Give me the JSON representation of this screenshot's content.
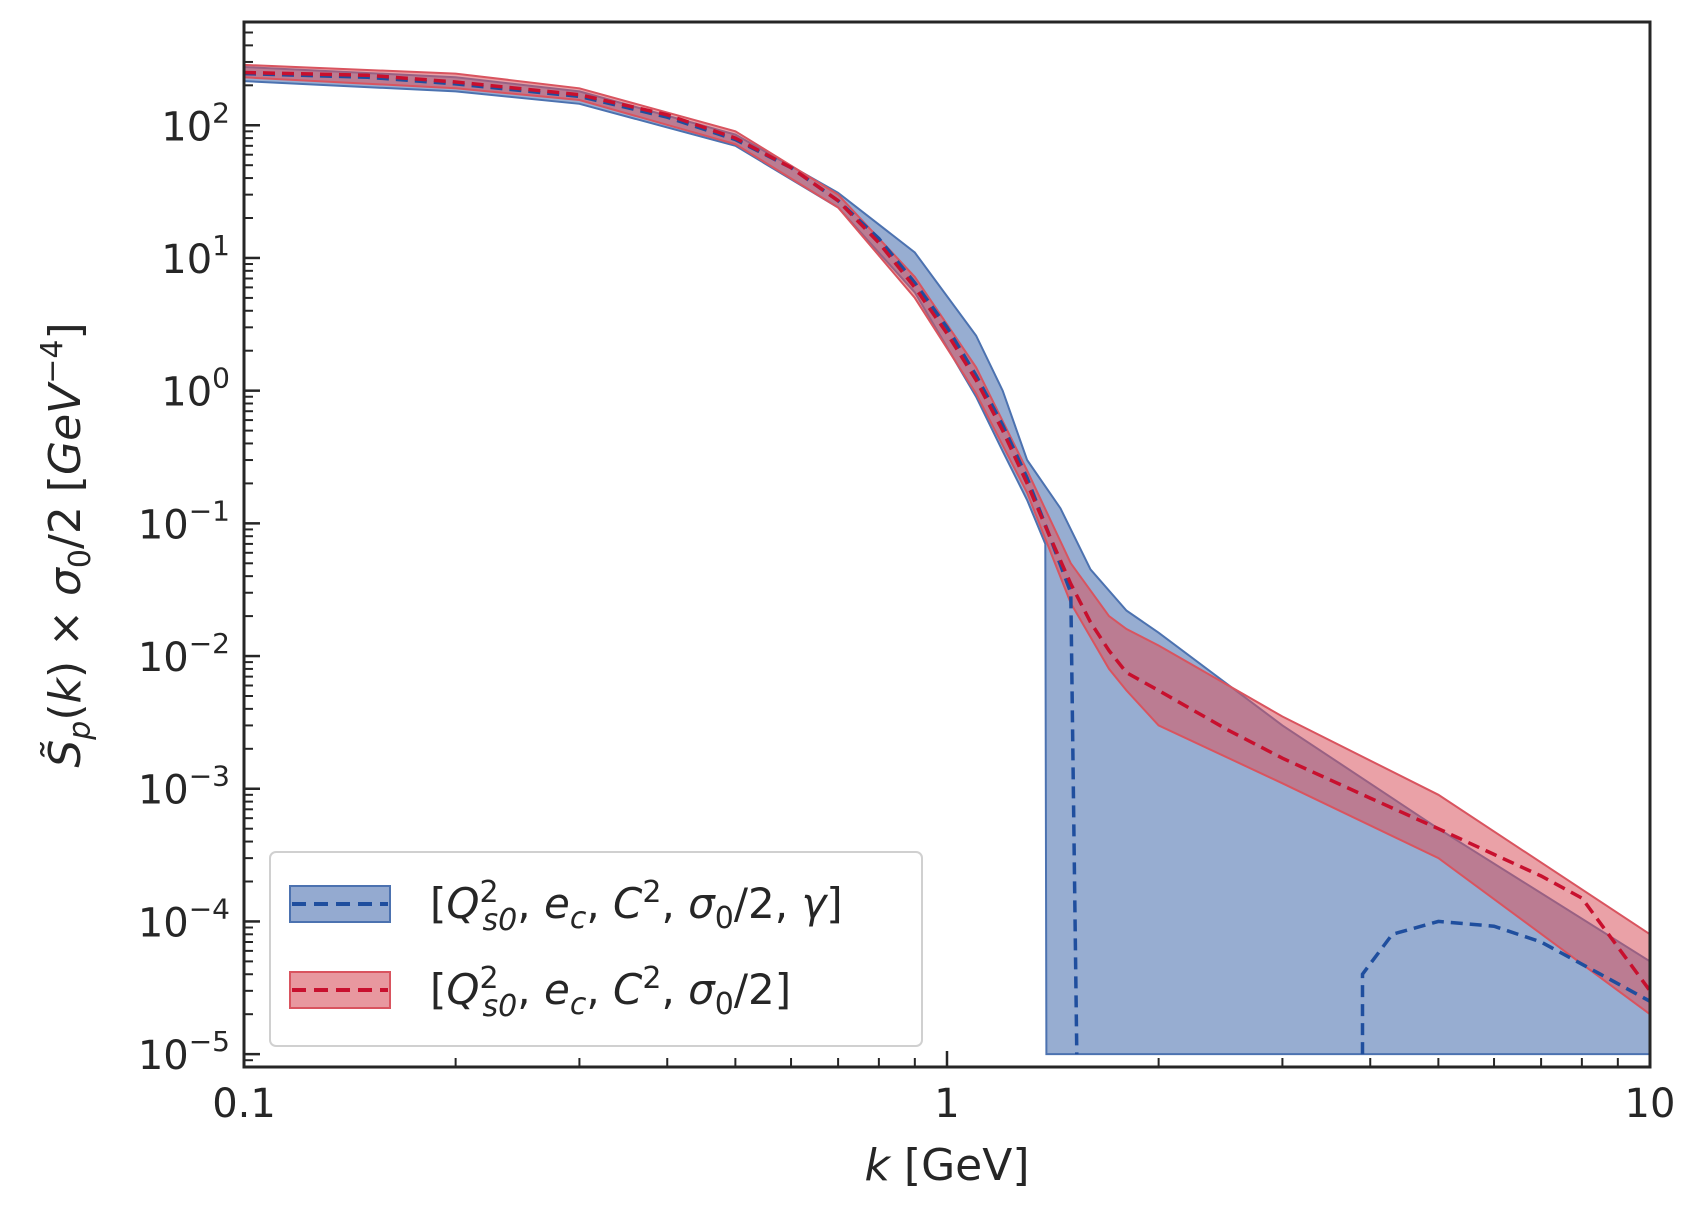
{
  "chart_data": {
    "type": "line",
    "x_scale": "log",
    "y_scale": "log",
    "xlim": [
      0.1,
      10
    ],
    "ylim": [
      8e-06,
      600
    ],
    "grid": false,
    "legend_position": "lower-left",
    "xlabel": "k [GeV]",
    "ylabel": "S̃p(k) × σ0/2 [GeV−4]",
    "x_tick_labels": [
      {
        "value": 0.1,
        "label": "0.1"
      },
      {
        "value": 1,
        "label": "1"
      },
      {
        "value": 10,
        "label": "10"
      }
    ],
    "y_tick_labels": [
      {
        "value": 100,
        "base": "10",
        "exp": "2"
      },
      {
        "value": 10,
        "base": "10",
        "exp": "1"
      },
      {
        "value": 1,
        "base": "10",
        "exp": "0"
      },
      {
        "value": 0.1,
        "base": "10",
        "exp": "−1"
      },
      {
        "value": 0.01,
        "base": "10",
        "exp": "−2"
      },
      {
        "value": 0.001,
        "base": "10",
        "exp": "−3"
      },
      {
        "value": 0.0001,
        "base": "10",
        "exp": "−4"
      },
      {
        "value": 1e-05,
        "base": "10",
        "exp": "−5"
      }
    ],
    "series": [
      {
        "name": "[Q²s0, ec, C², σ0/2, γ]",
        "color": "#1f4e9e",
        "band_color": "#4c72b0",
        "line": [
          {
            "x": 0.1,
            "y": 245
          },
          {
            "x": 0.15,
            "y": 230
          },
          {
            "x": 0.2,
            "y": 205
          },
          {
            "x": 0.3,
            "y": 165
          },
          {
            "x": 0.4,
            "y": 115
          },
          {
            "x": 0.5,
            "y": 78
          },
          {
            "x": 0.6,
            "y": 48
          },
          {
            "x": 0.7,
            "y": 27
          },
          {
            "x": 0.8,
            "y": 14
          },
          {
            "x": 0.9,
            "y": 6.5
          },
          {
            "x": 1.0,
            "y": 3.0
          },
          {
            "x": 1.1,
            "y": 1.3
          },
          {
            "x": 1.2,
            "y": 0.55
          },
          {
            "x": 1.3,
            "y": 0.22
          },
          {
            "x": 1.4,
            "y": 0.08
          },
          {
            "x": 1.5,
            "y": 0.03
          },
          {
            "x": 1.53,
            "y": 1e-05
          }
        ],
        "line_segment_2": [
          {
            "x": 3.9,
            "y": 1e-05
          },
          {
            "x": 3.9,
            "y": 4e-05
          },
          {
            "x": 4.3,
            "y": 8e-05
          },
          {
            "x": 5.0,
            "y": 0.0001
          },
          {
            "x": 6.0,
            "y": 9.2e-05
          },
          {
            "x": 7.0,
            "y": 7e-05
          },
          {
            "x": 8.5,
            "y": 4e-05
          },
          {
            "x": 10,
            "y": 2.5e-05
          }
        ],
        "band_upper": [
          {
            "x": 0.1,
            "y": 275
          },
          {
            "x": 0.2,
            "y": 230
          },
          {
            "x": 0.3,
            "y": 180
          },
          {
            "x": 0.5,
            "y": 85
          },
          {
            "x": 0.7,
            "y": 31
          },
          {
            "x": 0.9,
            "y": 11
          },
          {
            "x": 1.1,
            "y": 2.6
          },
          {
            "x": 1.2,
            "y": 1.0
          },
          {
            "x": 1.3,
            "y": 0.3
          },
          {
            "x": 1.45,
            "y": 0.13
          },
          {
            "x": 1.6,
            "y": 0.045
          },
          {
            "x": 1.8,
            "y": 0.022
          },
          {
            "x": 2.0,
            "y": 0.015
          },
          {
            "x": 3.0,
            "y": 0.003
          },
          {
            "x": 5.0,
            "y": 0.0005
          },
          {
            "x": 10,
            "y": 5e-05
          }
        ],
        "band_lower": [
          {
            "x": 0.1,
            "y": 215
          },
          {
            "x": 0.2,
            "y": 180
          },
          {
            "x": 0.3,
            "y": 145
          },
          {
            "x": 0.5,
            "y": 70
          },
          {
            "x": 0.7,
            "y": 24
          },
          {
            "x": 0.9,
            "y": 5.5
          },
          {
            "x": 1.1,
            "y": 0.9
          },
          {
            "x": 1.2,
            "y": 0.35
          },
          {
            "x": 1.3,
            "y": 0.15
          },
          {
            "x": 1.38,
            "y": 0.07
          },
          {
            "x": 1.385,
            "y": 1e-05
          },
          {
            "x": 10,
            "y": 1e-05
          }
        ]
      },
      {
        "name": "[Q²s0, ec, C², σ0/2]",
        "color": "#c8102e",
        "band_color": "#d9545f",
        "line": [
          {
            "x": 0.1,
            "y": 250
          },
          {
            "x": 0.15,
            "y": 238
          },
          {
            "x": 0.2,
            "y": 212
          },
          {
            "x": 0.3,
            "y": 170
          },
          {
            "x": 0.4,
            "y": 120
          },
          {
            "x": 0.5,
            "y": 80
          },
          {
            "x": 0.6,
            "y": 48
          },
          {
            "x": 0.7,
            "y": 27
          },
          {
            "x": 0.8,
            "y": 13
          },
          {
            "x": 0.9,
            "y": 6.0
          },
          {
            "x": 1.0,
            "y": 2.7
          },
          {
            "x": 1.1,
            "y": 1.2
          },
          {
            "x": 1.2,
            "y": 0.5
          },
          {
            "x": 1.3,
            "y": 0.2
          },
          {
            "x": 1.4,
            "y": 0.08
          },
          {
            "x": 1.5,
            "y": 0.035
          },
          {
            "x": 1.6,
            "y": 0.018
          },
          {
            "x": 1.7,
            "y": 0.011
          },
          {
            "x": 1.8,
            "y": 0.0075
          },
          {
            "x": 2.0,
            "y": 0.0055
          },
          {
            "x": 2.5,
            "y": 0.0028
          },
          {
            "x": 3.0,
            "y": 0.0017
          },
          {
            "x": 4.0,
            "y": 0.00085
          },
          {
            "x": 5.0,
            "y": 0.0005
          },
          {
            "x": 6.0,
            "y": 0.00032
          },
          {
            "x": 7.0,
            "y": 0.00022
          },
          {
            "x": 8.0,
            "y": 0.00015
          },
          {
            "x": 10,
            "y": 3e-05
          }
        ],
        "band_upper": [
          {
            "x": 0.1,
            "y": 285
          },
          {
            "x": 0.2,
            "y": 245
          },
          {
            "x": 0.3,
            "y": 190
          },
          {
            "x": 0.5,
            "y": 90
          },
          {
            "x": 0.7,
            "y": 30
          },
          {
            "x": 0.9,
            "y": 7.2
          },
          {
            "x": 1.1,
            "y": 1.5
          },
          {
            "x": 1.3,
            "y": 0.25
          },
          {
            "x": 1.5,
            "y": 0.05
          },
          {
            "x": 1.7,
            "y": 0.02
          },
          {
            "x": 1.8,
            "y": 0.016
          },
          {
            "x": 2.0,
            "y": 0.012
          },
          {
            "x": 3.0,
            "y": 0.0035
          },
          {
            "x": 5.0,
            "y": 0.0009
          },
          {
            "x": 10,
            "y": 8e-05
          }
        ],
        "band_lower": [
          {
            "x": 0.1,
            "y": 230
          },
          {
            "x": 0.2,
            "y": 190
          },
          {
            "x": 0.3,
            "y": 155
          },
          {
            "x": 0.5,
            "y": 72
          },
          {
            "x": 0.7,
            "y": 24
          },
          {
            "x": 0.9,
            "y": 5.0
          },
          {
            "x": 1.1,
            "y": 0.95
          },
          {
            "x": 1.3,
            "y": 0.17
          },
          {
            "x": 1.5,
            "y": 0.025
          },
          {
            "x": 1.7,
            "y": 0.008
          },
          {
            "x": 1.8,
            "y": 0.0055
          },
          {
            "x": 2.0,
            "y": 0.003
          },
          {
            "x": 3.0,
            "y": 0.0011
          },
          {
            "x": 5.0,
            "y": 0.0003
          },
          {
            "x": 10,
            "y": 2e-05
          }
        ]
      }
    ]
  }
}
